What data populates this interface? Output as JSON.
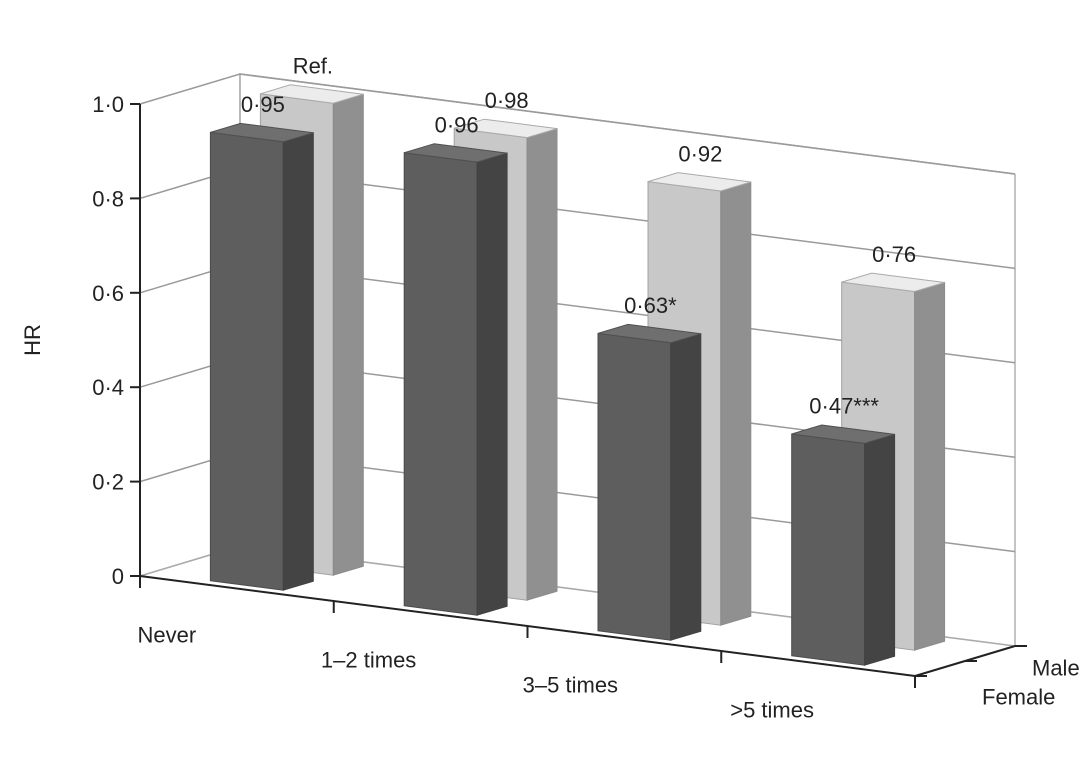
{
  "chart_data": {
    "type": "bar",
    "variant": "3d-clustered",
    "title": "",
    "ylabel": "HR",
    "xlabel": "",
    "ylim": [
      0,
      1.0
    ],
    "ytick_labels": [
      "0",
      "0·2",
      "0·4",
      "0·6",
      "0·8",
      "1·0"
    ],
    "categories": [
      "Never",
      "1–2 times",
      "3–5 times",
      ">5 times"
    ],
    "depth_labels": [
      "Female",
      "Male"
    ],
    "grid": true,
    "series": [
      {
        "name": "Female",
        "color": "#5e5e5e",
        "values": [
          0.95,
          0.96,
          0.63,
          0.47
        ],
        "labels": [
          "0·95",
          "0·96",
          "0·63*",
          "0·47***"
        ]
      },
      {
        "name": "Male",
        "color": "#c8c8c8",
        "values": [
          1.0,
          0.98,
          0.92,
          0.76
        ],
        "labels": [
          "Ref.",
          "0·98",
          "0·92",
          "0·76"
        ]
      }
    ]
  }
}
